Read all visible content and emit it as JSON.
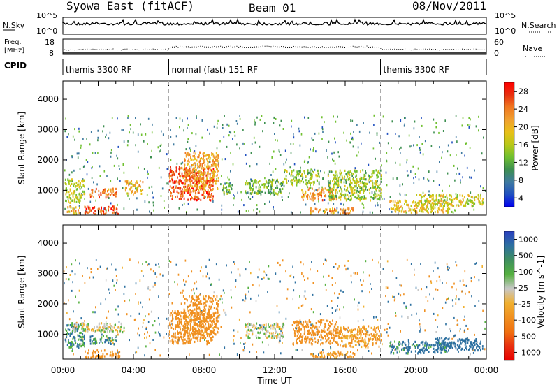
{
  "header": {
    "station": "Syowa East (fitACF)",
    "beam": "Beam 01",
    "date": "08/Nov/2011"
  },
  "strips": {
    "nsky_label": "N.Sky",
    "nsky_ticks": [
      "10^5",
      "10^0"
    ],
    "nsearch_label": "N.Search",
    "nsearch_ticks": [
      "10^5",
      "10^0"
    ],
    "freq_label_1": "Freq.",
    "freq_label_2": "[MHz]",
    "freq_ticks": [
      "18",
      "8"
    ],
    "nave_label": "Nave",
    "nave_ticks": [
      "60",
      "0"
    ],
    "cpid_label": "CPID",
    "cpid_segments": [
      {
        "label": "themis 3300 RF",
        "start": 0,
        "end": 6
      },
      {
        "label": "normal (fast) 151 RF",
        "start": 6,
        "end": 18
      },
      {
        "label": "themis 3300 RF",
        "start": 18,
        "end": 24
      }
    ]
  },
  "chart_data": [
    {
      "type": "heatmap",
      "title": "",
      "xlabel": "Time UT",
      "ylabel": "Slant Range [km]",
      "x_ticks": [
        "00:00",
        "04:00",
        "08:00",
        "12:00",
        "16:00",
        "20:00",
        "00:00"
      ],
      "y_ticks": [
        "1000",
        "2000",
        "3000",
        "4000"
      ],
      "xlim": [
        0,
        24
      ],
      "ylim": [
        180,
        4600
      ],
      "colorbar_label": "Power [dB]",
      "colorbar_ticks": [
        "28",
        "24",
        "20",
        "16",
        "12",
        "8",
        "4"
      ],
      "colorbar_colors": [
        "#ff0000",
        "#e83010",
        "#f07820",
        "#f0a030",
        "#e8c018",
        "#b8c818",
        "#70c030",
        "#3d8f50",
        "#3f7aa0",
        "#2050c0",
        "#0000f0"
      ],
      "range_km": [
        0,
        32
      ],
      "regions": [
        {
          "t0": 0.1,
          "t1": 1.2,
          "r0": 600,
          "r1": 1400,
          "level": 0.5
        },
        {
          "t0": 0.2,
          "t1": 1.0,
          "r0": 250,
          "r1": 500,
          "level": 0.65
        },
        {
          "t0": 1.2,
          "t1": 3.2,
          "r0": 250,
          "r1": 500,
          "level": 0.85
        },
        {
          "t0": 1.5,
          "t1": 3.0,
          "r0": 800,
          "r1": 1100,
          "level": 0.78
        },
        {
          "t0": 3.5,
          "t1": 4.5,
          "r0": 900,
          "r1": 1350,
          "level": 0.65
        },
        {
          "t0": 6.0,
          "t1": 8.5,
          "r0": 700,
          "r1": 1800,
          "level": 0.88
        },
        {
          "t0": 6.8,
          "t1": 8.8,
          "r0": 1000,
          "r1": 2300,
          "level": 0.7
        },
        {
          "t0": 9.0,
          "t1": 9.6,
          "r0": 900,
          "r1": 1300,
          "level": 0.35
        },
        {
          "t0": 10.3,
          "t1": 12.5,
          "r0": 900,
          "r1": 1400,
          "level": 0.4
        },
        {
          "t0": 12.5,
          "t1": 14.5,
          "r0": 1200,
          "r1": 1700,
          "level": 0.45
        },
        {
          "t0": 13.5,
          "t1": 15.5,
          "r0": 700,
          "r1": 1100,
          "level": 0.75
        },
        {
          "t0": 14.0,
          "t1": 16.5,
          "r0": 250,
          "r1": 450,
          "level": 0.72
        },
        {
          "t0": 15.0,
          "t1": 18.0,
          "r0": 700,
          "r1": 1700,
          "level": 0.45
        },
        {
          "t0": 18.5,
          "t1": 22.0,
          "r0": 300,
          "r1": 700,
          "level": 0.6
        },
        {
          "t0": 20.0,
          "t1": 23.8,
          "r0": 500,
          "r1": 900,
          "level": 0.55
        }
      ]
    },
    {
      "type": "heatmap",
      "title": "",
      "xlabel": "Time UT",
      "ylabel": "Slant Range [km]",
      "x_ticks": [
        "00:00",
        "04:00",
        "08:00",
        "12:00",
        "16:00",
        "20:00",
        "00:00"
      ],
      "y_ticks": [
        "1000",
        "2000",
        "3000",
        "4000"
      ],
      "xlim": [
        0,
        24
      ],
      "ylim": [
        180,
        4600
      ],
      "colorbar_label": "Velocity [m s^-1]",
      "colorbar_ticks": [
        "1000",
        "500",
        "100",
        "25",
        "-25",
        "-100",
        "-500",
        "-1000"
      ],
      "colorbar_colors": [
        "#2a40c0",
        "#2d70a0",
        "#3f8f5f",
        "#55b040",
        "#c8c8c8",
        "#f0b030",
        "#f09020",
        "#f07010",
        "#e83010",
        "#e80000"
      ],
      "range_ms": [
        -1000,
        1000
      ],
      "regions": [
        {
          "t0": 0.1,
          "t1": 1.2,
          "r0": 600,
          "r1": 1400,
          "v": 100
        },
        {
          "t0": 0.5,
          "t1": 3.5,
          "r0": 1100,
          "r1": 1400,
          "v": 0
        },
        {
          "t0": 1.2,
          "t1": 3.2,
          "r0": 250,
          "r1": 500,
          "v": -150
        },
        {
          "t0": 1.5,
          "t1": 3.0,
          "r0": 700,
          "r1": 1000,
          "v": 120
        },
        {
          "t0": 6.0,
          "t1": 8.5,
          "r0": 700,
          "r1": 1800,
          "v": -200
        },
        {
          "t0": 6.8,
          "t1": 8.8,
          "r0": 1000,
          "r1": 2300,
          "v": -150
        },
        {
          "t0": 10.3,
          "t1": 12.5,
          "r0": 900,
          "r1": 1400,
          "v": 0
        },
        {
          "t0": 13.0,
          "t1": 15.5,
          "r0": 700,
          "r1": 1500,
          "v": -180
        },
        {
          "t0": 14.0,
          "t1": 16.5,
          "r0": 250,
          "r1": 450,
          "v": -120
        },
        {
          "t0": 15.5,
          "t1": 18.0,
          "r0": 600,
          "r1": 1300,
          "v": -110
        },
        {
          "t0": 18.5,
          "t1": 22.0,
          "r0": 400,
          "r1": 800,
          "v": 140
        },
        {
          "t0": 21.0,
          "t1": 23.8,
          "r0": 500,
          "r1": 900,
          "v": 200
        }
      ]
    }
  ]
}
